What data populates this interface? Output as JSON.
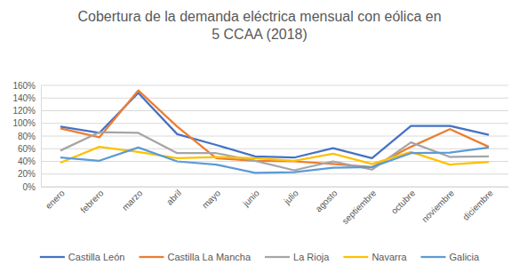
{
  "chart_data": {
    "type": "line",
    "title": "Cobertura de la demanda eléctrica mensual con eólica en 5 CCAA (2018)",
    "categories": [
      "enero",
      "febrero",
      "marzo",
      "abril",
      "mayo",
      "junio",
      "julio",
      "agosto",
      "septiembre",
      "octubre",
      "noviembre",
      "diciembre"
    ],
    "series": [
      {
        "name": "Castilla León",
        "color": "#4472c4",
        "values": [
          95,
          85,
          148,
          83,
          66,
          48,
          46,
          61,
          45,
          96,
          96,
          82
        ]
      },
      {
        "name": "Castilla La Mancha",
        "color": "#ed7d31",
        "values": [
          92,
          78,
          152,
          95,
          45,
          41,
          40,
          36,
          31,
          63,
          91,
          63
        ]
      },
      {
        "name": "La Rioja",
        "color": "#a5a5a5",
        "values": [
          57,
          86,
          85,
          53,
          53,
          41,
          26,
          40,
          27,
          70,
          47,
          48
        ]
      },
      {
        "name": "Navarra",
        "color": "#ffc000",
        "values": [
          38,
          63,
          55,
          45,
          47,
          45,
          41,
          52,
          36,
          55,
          35,
          39
        ]
      },
      {
        "name": "Galicia",
        "color": "#5b9bd5",
        "values": [
          46,
          41,
          62,
          40,
          35,
          22,
          23,
          30,
          31,
          53,
          54,
          62
        ]
      }
    ],
    "ylim": [
      0,
      160
    ],
    "yticks": [
      {
        "value": 0,
        "label": "0%"
      },
      {
        "value": 20,
        "label": "20%"
      },
      {
        "value": 40,
        "label": "40%"
      },
      {
        "value": 60,
        "label": "60%"
      },
      {
        "value": 80,
        "label": "80%"
      },
      {
        "value": 100,
        "label": "100%"
      },
      {
        "value": 120,
        "label": "120%"
      },
      {
        "value": 140,
        "label": "140%"
      },
      {
        "value": 160,
        "label": "160%"
      }
    ],
    "grid": true,
    "legend": "bottom"
  }
}
